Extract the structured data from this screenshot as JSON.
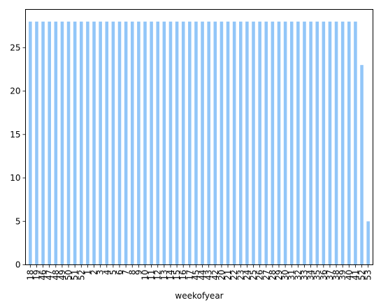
{
  "chart_data": {
    "type": "bar",
    "title": "",
    "xlabel": "weekofyear",
    "ylabel": "",
    "categories": [
      "18",
      "19",
      "46",
      "47",
      "48",
      "49",
      "50",
      "51",
      "52",
      "1",
      "2",
      "3",
      "4",
      "5",
      "6",
      "7",
      "8",
      "9",
      "10",
      "11",
      "12",
      "13",
      "14",
      "15",
      "16",
      "17",
      "45",
      "44",
      "43",
      "42",
      "20",
      "21",
      "22",
      "23",
      "24",
      "25",
      "26",
      "27",
      "28",
      "29",
      "30",
      "31",
      "32",
      "33",
      "34",
      "35",
      "36",
      "37",
      "38",
      "39",
      "40",
      "41",
      "52",
      "53"
    ],
    "values": [
      28,
      28,
      28,
      28,
      28,
      28,
      28,
      28,
      28,
      28,
      28,
      28,
      28,
      28,
      28,
      28,
      28,
      28,
      28,
      28,
      28,
      28,
      28,
      28,
      28,
      28,
      28,
      28,
      28,
      28,
      28,
      28,
      28,
      28,
      28,
      28,
      28,
      28,
      28,
      28,
      28,
      28,
      28,
      28,
      28,
      28,
      28,
      28,
      28,
      28,
      28,
      28,
      23,
      5
    ],
    "ylim": [
      0,
      29.4
    ],
    "yticks": [
      0,
      5,
      10,
      15,
      20,
      25
    ],
    "grid": false,
    "colors": {
      "bar": "#92c6f8",
      "axis": "#000000"
    }
  }
}
